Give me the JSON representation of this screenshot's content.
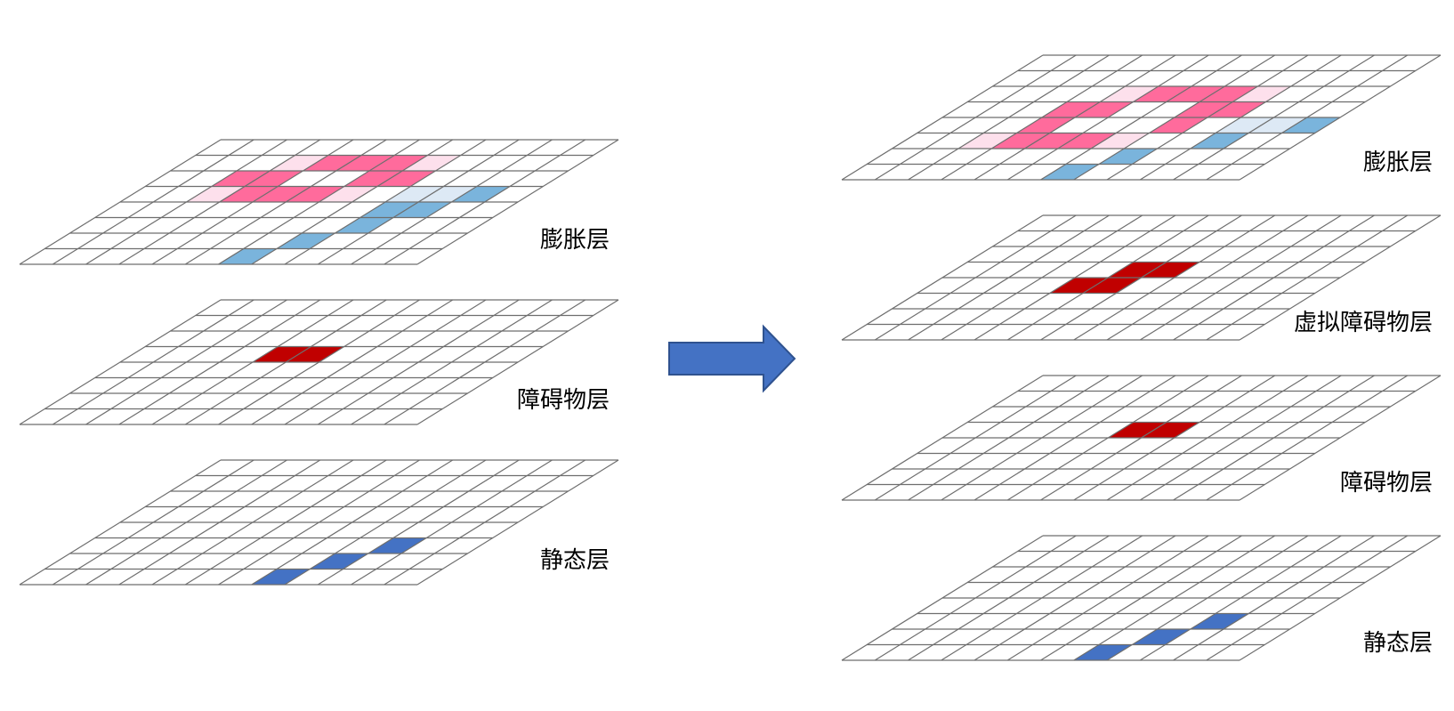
{
  "colors": {
    "grid_line": "#6e6e6e",
    "inflation_strong": "#ff6b9c",
    "inflation_light": "#fde0ec",
    "inflation_blue": "#7ab4dc",
    "inflation_blue_light": "#dde9f5",
    "obstacle": "#c00000",
    "static": "#4472c4",
    "arrow_fill": "#4472c4",
    "arrow_stroke": "#2f528f"
  },
  "grid": {
    "rows": 8,
    "cols": 12
  },
  "left_stack": {
    "layers": [
      {
        "label": "膨胀层",
        "cells": [
          {
            "r": 1,
            "c": [
              3,
              4
            ],
            "color": "inflation_light"
          },
          {
            "r": 1,
            "c": [
              4,
              5,
              6
            ],
            "color": "inflation_strong"
          },
          {
            "r": 1,
            "c": [
              7
            ],
            "color": "inflation_light"
          },
          {
            "r": 2,
            "c": [
              2,
              3
            ],
            "color": "inflation_strong"
          },
          {
            "r": 2,
            "c": [
              6,
              7
            ],
            "color": "inflation_strong"
          },
          {
            "r": 3,
            "c": [
              2
            ],
            "color": "inflation_light"
          },
          {
            "r": 3,
            "c": [
              3,
              4,
              5
            ],
            "color": "inflation_strong"
          },
          {
            "r": 3,
            "c": [
              6
            ],
            "color": "inflation_light"
          },
          {
            "r": 3,
            "c": [
              8,
              9
            ],
            "color": "inflation_blue_light"
          },
          {
            "r": 3,
            "c": [
              10
            ],
            "color": "inflation_blue"
          },
          {
            "r": 4,
            "c": [
              8,
              9
            ],
            "color": "inflation_blue"
          },
          {
            "r": 5,
            "c": [
              8
            ],
            "color": "inflation_blue"
          },
          {
            "r": 6,
            "c": [
              7
            ],
            "color": "inflation_blue"
          },
          {
            "r": 7,
            "c": [
              6
            ],
            "color": "inflation_blue"
          }
        ]
      },
      {
        "label": "障碍物层",
        "cells": [
          {
            "r": 3,
            "c": [
              4,
              5
            ],
            "color": "obstacle"
          }
        ]
      },
      {
        "label": "静态层",
        "cells": [
          {
            "r": 5,
            "c": [
              9
            ],
            "color": "static"
          },
          {
            "r": 6,
            "c": [
              8
            ],
            "color": "static"
          },
          {
            "r": 7,
            "c": [
              7
            ],
            "color": "static"
          }
        ]
      }
    ]
  },
  "right_stack": {
    "layers": [
      {
        "label": "膨胀层",
        "cells": [
          {
            "r": 2,
            "c": [
              4
            ],
            "color": "inflation_light"
          },
          {
            "r": 2,
            "c": [
              5,
              6,
              7
            ],
            "color": "inflation_strong"
          },
          {
            "r": 2,
            "c": [
              8
            ],
            "color": "inflation_light"
          },
          {
            "r": 3,
            "c": [
              3,
              4
            ],
            "color": "inflation_strong"
          },
          {
            "r": 3,
            "c": [
              7,
              8
            ],
            "color": "inflation_strong"
          },
          {
            "r": 4,
            "c": [
              3
            ],
            "color": "inflation_strong"
          },
          {
            "r": 4,
            "c": [
              7
            ],
            "color": "inflation_strong"
          },
          {
            "r": 4,
            "c": [
              9,
              10
            ],
            "color": "inflation_blue_light"
          },
          {
            "r": 4,
            "c": [
              11
            ],
            "color": "inflation_blue"
          },
          {
            "r": 5,
            "c": [
              2
            ],
            "color": "inflation_light"
          },
          {
            "r": 5,
            "c": [
              3,
              4,
              5
            ],
            "color": "inflation_strong"
          },
          {
            "r": 5,
            "c": [
              6
            ],
            "color": "inflation_light"
          },
          {
            "r": 5,
            "c": [
              9
            ],
            "color": "inflation_blue"
          },
          {
            "r": 6,
            "c": [
              7
            ],
            "color": "inflation_blue"
          },
          {
            "r": 7,
            "c": [
              6
            ],
            "color": "inflation_blue"
          }
        ]
      },
      {
        "label": "虚拟障碍物层",
        "cells": [
          {
            "r": 3,
            "c": [
              5,
              6
            ],
            "color": "obstacle"
          },
          {
            "r": 4,
            "c": [
              4,
              5
            ],
            "color": "obstacle"
          }
        ]
      },
      {
        "label": "障碍物层",
        "cells": [
          {
            "r": 3,
            "c": [
              5,
              6
            ],
            "color": "obstacle"
          }
        ]
      },
      {
        "label": "静态层",
        "cells": [
          {
            "r": 5,
            "c": [
              9
            ],
            "color": "static"
          },
          {
            "r": 6,
            "c": [
              8
            ],
            "color": "static"
          },
          {
            "r": 7,
            "c": [
              7
            ],
            "color": "static"
          }
        ]
      }
    ]
  }
}
